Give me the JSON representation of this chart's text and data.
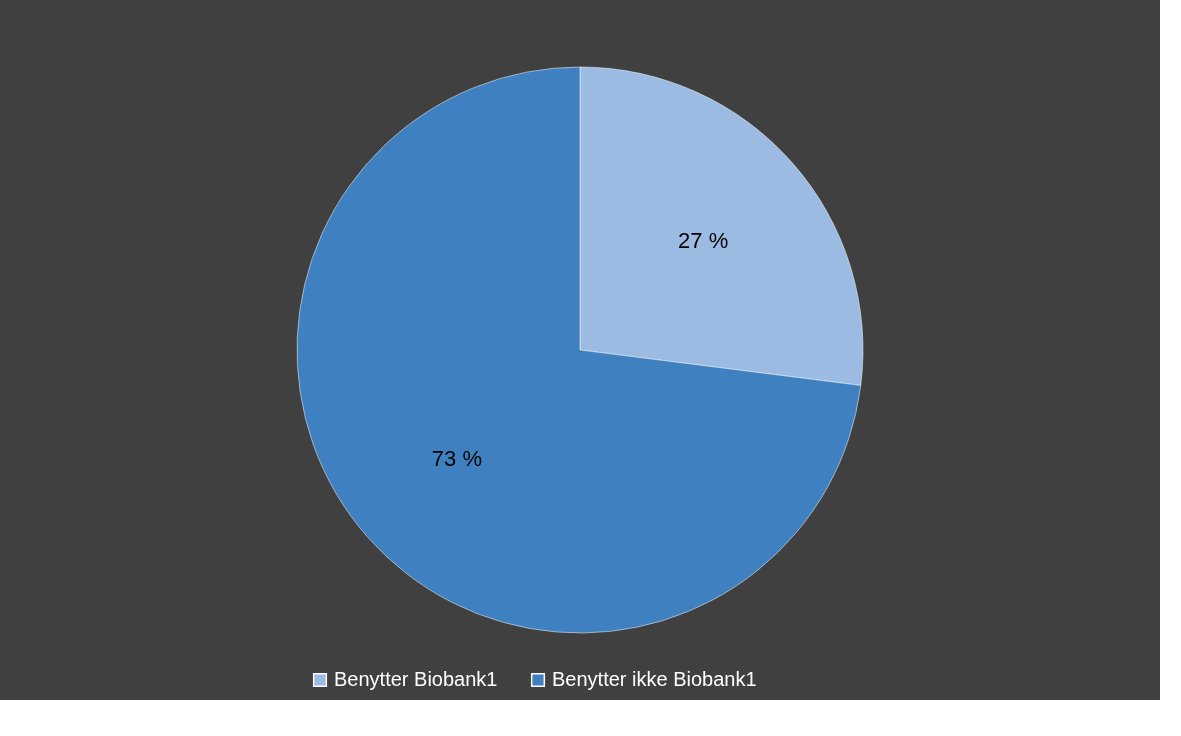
{
  "chart_data": {
    "type": "pie",
    "categories": [
      "Benytter Biobank1",
      "Benytter ikke Biobank1"
    ],
    "values": [
      27,
      73
    ],
    "colors": [
      "#9bbbe2",
      "#3f80c0"
    ],
    "value_labels": [
      "27 %",
      "73 %"
    ],
    "legend": "bottom"
  }
}
